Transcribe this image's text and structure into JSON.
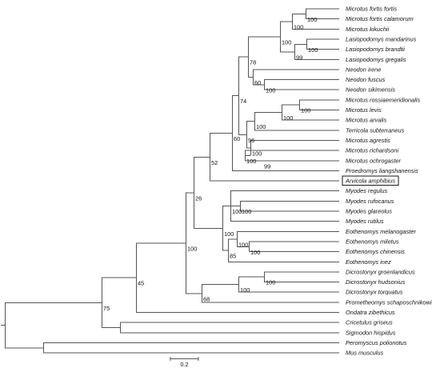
{
  "tree": {
    "taxa": [
      "Microtus fortis fortis",
      "Microtus fortis calamorum",
      "Microtus kikuchii",
      "Lasiopodomys mandarinus",
      "Lasiopodomys brandtii",
      "Lasiopodomys gregalis",
      "Neodon irene",
      "Neodon fuscus",
      "Neodon sikimensis",
      "Microtus rossiaemeridionalis",
      "Microtus levis",
      "Microtus arvalis",
      "Terricola subterraneus",
      "Microtus agrestis",
      "Microtus richardsoni",
      "Microtus ochrogaster",
      "Proedromys liangshanensis",
      "Arvicola amphibius",
      "Myodes regulus",
      "Myodes rufocanus",
      "Myodes glareolus",
      "Myodes rutilus",
      "Eothenomys melanogaster",
      "Eothenomys miletus",
      "Eothenomys chinensis",
      "Eothenomys inez",
      "Dicrostonyx groenlandicus",
      "Dicrostonyx hudsonius",
      "Dicrostonyx torquatus",
      "Prometheomys schaposchnikowi",
      "Ondatra zibethicus",
      "Cricetulus griseus",
      "Sigmodon hispidus",
      "Peromyscus polionotus",
      "Mus musculus"
    ],
    "highlighted_taxon": "Arvicola amphibius",
    "support": {
      "fortis_pair": "100",
      "fortis_kikuchii": "100",
      "lasio_mb": "100",
      "lasio_all": "99",
      "mf_lasio": "100",
      "neodon_fs": "100",
      "neodon_all": "60",
      "mf_neodon": "78",
      "ross_levis": "100",
      "arvalis_group": "100",
      "terricola": "96",
      "agrestis_group": "100",
      "rich_ochro": "99",
      "richardsoni_group": "100",
      "microtus_big": "74",
      "arvicolini": "60",
      "rufo_glareolus": "100",
      "rutilus_group": "100",
      "mel_mil": "100",
      "eoth_group": "100",
      "eoth_all": "85",
      "myodini": "100",
      "arv_myod": "52",
      "dicro_gh": "100",
      "dicro_all": "100",
      "dicro_prom": "68",
      "arvicolinae_core": "26",
      "arvicolinae": "100",
      "cricetidae": "45",
      "with_sigmodon": "75"
    },
    "scale_bar_label": "0.2"
  }
}
